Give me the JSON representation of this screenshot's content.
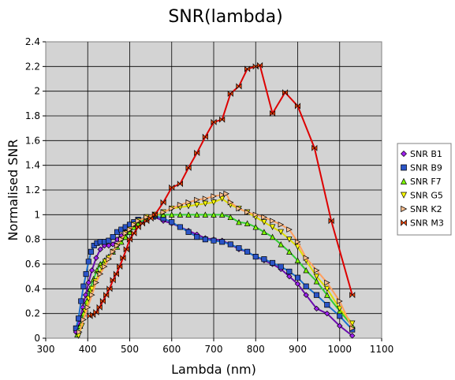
{
  "chart_data": {
    "type": "line",
    "title": "SNR(lambda)",
    "xlabel": "Lambda  (nm)",
    "ylabel": "Normalised SNR",
    "xlim": [
      300,
      1100
    ],
    "ylim": [
      0,
      2.4
    ],
    "xticks": [
      "300",
      "400",
      "500",
      "600",
      "700",
      "800",
      "900",
      "1000",
      "1100"
    ],
    "yticks": [
      "0",
      "0.2",
      "0.4",
      "0.6",
      "0.8",
      "1",
      "1.2",
      "1.4",
      "1.6",
      "1.8",
      "2",
      "2.2",
      "2.4"
    ],
    "grid": true,
    "legend": "right",
    "plot_background": "#d3d3d3",
    "series": [
      {
        "name": "SNR B1",
        "color": "#6a0dad",
        "fill": "#a020f0",
        "marker": "diamond",
        "x": [
          372,
          380,
          388,
          395,
          402,
          410,
          420,
          430,
          440,
          450,
          460,
          470,
          480,
          490,
          500,
          510,
          520,
          540,
          560,
          580,
          600,
          620,
          640,
          660,
          680,
          700,
          720,
          740,
          760,
          780,
          800,
          820,
          840,
          860,
          880,
          900,
          920,
          945,
          970,
          1000,
          1030
        ],
        "y": [
          0.05,
          0.12,
          0.25,
          0.35,
          0.45,
          0.55,
          0.65,
          0.72,
          0.75,
          0.75,
          0.76,
          0.8,
          0.83,
          0.86,
          0.88,
          0.9,
          0.92,
          0.96,
          0.98,
          0.95,
          0.93,
          0.9,
          0.87,
          0.84,
          0.81,
          0.8,
          0.79,
          0.76,
          0.72,
          0.7,
          0.66,
          0.63,
          0.6,
          0.56,
          0.5,
          0.44,
          0.35,
          0.24,
          0.2,
          0.1,
          0.02
        ]
      },
      {
        "name": "SNR B9",
        "color": "#1a6fd1",
        "fill": "#2b55c8",
        "marker": "square",
        "x": [
          372,
          378,
          384,
          390,
          396,
          402,
          408,
          415,
          422,
          430,
          440,
          450,
          460,
          470,
          480,
          490,
          500,
          510,
          520,
          540,
          560,
          580,
          600,
          620,
          640,
          660,
          680,
          700,
          720,
          740,
          760,
          780,
          800,
          820,
          840,
          860,
          880,
          900,
          920,
          945,
          970,
          1000,
          1030
        ],
        "y": [
          0.08,
          0.16,
          0.3,
          0.42,
          0.52,
          0.62,
          0.7,
          0.75,
          0.77,
          0.78,
          0.78,
          0.79,
          0.82,
          0.86,
          0.88,
          0.9,
          0.92,
          0.94,
          0.96,
          0.98,
          0.99,
          0.97,
          0.94,
          0.9,
          0.86,
          0.82,
          0.8,
          0.79,
          0.78,
          0.76,
          0.73,
          0.7,
          0.66,
          0.64,
          0.61,
          0.58,
          0.54,
          0.49,
          0.42,
          0.35,
          0.27,
          0.18,
          0.07
        ]
      },
      {
        "name": "SNR F7",
        "color": "#32cd32",
        "fill": "#7cfc00",
        "marker": "triangle-up",
        "x": [
          375,
          382,
          390,
          398,
          406,
          414,
          422,
          430,
          440,
          450,
          460,
          470,
          480,
          490,
          500,
          510,
          520,
          540,
          560,
          580,
          600,
          620,
          640,
          660,
          680,
          700,
          720,
          740,
          760,
          780,
          800,
          820,
          840,
          860,
          880,
          900,
          920,
          945,
          970,
          1000,
          1030
        ],
        "y": [
          0.03,
          0.1,
          0.2,
          0.3,
          0.4,
          0.48,
          0.55,
          0.6,
          0.63,
          0.66,
          0.7,
          0.74,
          0.78,
          0.82,
          0.86,
          0.9,
          0.93,
          0.97,
          1.0,
          1.0,
          1.0,
          1.0,
          1.0,
          1.0,
          1.0,
          1.0,
          1.0,
          0.98,
          0.94,
          0.93,
          0.9,
          0.86,
          0.82,
          0.76,
          0.7,
          0.63,
          0.55,
          0.46,
          0.35,
          0.22,
          0.1
        ]
      },
      {
        "name": "SNR G5",
        "color": "#dede00",
        "fill": "#ffff00",
        "marker": "triangle-down",
        "x": [
          378,
          386,
          394,
          402,
          410,
          418,
          426,
          434,
          442,
          450,
          460,
          470,
          480,
          490,
          500,
          510,
          520,
          540,
          560,
          580,
          600,
          620,
          640,
          660,
          680,
          700,
          720,
          740,
          760,
          780,
          800,
          820,
          840,
          860,
          880,
          900,
          920,
          945,
          970,
          1000,
          1030
        ],
        "y": [
          0.02,
          0.1,
          0.22,
          0.32,
          0.4,
          0.46,
          0.52,
          0.57,
          0.62,
          0.65,
          0.7,
          0.75,
          0.8,
          0.85,
          0.88,
          0.92,
          0.95,
          0.98,
          1.0,
          1.02,
          1.05,
          1.06,
          1.07,
          1.08,
          1.09,
          1.1,
          1.13,
          1.08,
          1.05,
          1.02,
          0.98,
          0.94,
          0.9,
          0.86,
          0.8,
          0.74,
          0.63,
          0.5,
          0.4,
          0.24,
          0.12
        ]
      },
      {
        "name": "SNR K2",
        "color": "#ffa060",
        "fill": "#ffc090",
        "marker": "triangle-right",
        "x": [
          380,
          390,
          400,
          410,
          420,
          430,
          440,
          450,
          460,
          470,
          480,
          490,
          500,
          510,
          520,
          540,
          560,
          580,
          600,
          620,
          640,
          660,
          680,
          700,
          720,
          730,
          740,
          760,
          780,
          800,
          820,
          840,
          860,
          880,
          900,
          920,
          945,
          970,
          1000,
          1030
        ],
        "y": [
          0.05,
          0.15,
          0.25,
          0.35,
          0.45,
          0.52,
          0.58,
          0.64,
          0.7,
          0.75,
          0.8,
          0.85,
          0.88,
          0.92,
          0.95,
          0.98,
          1.0,
          1.02,
          1.05,
          1.08,
          1.1,
          1.12,
          1.13,
          1.15,
          1.16,
          1.17,
          1.1,
          1.05,
          1.02,
          1.0,
          0.98,
          0.95,
          0.92,
          0.88,
          0.78,
          0.65,
          0.55,
          0.45,
          0.3,
          0.08
        ]
      },
      {
        "name": "SNR M3",
        "color": "#dd0000",
        "fill": "#ff4500",
        "marker": "bowtie",
        "x": [
          405,
          412,
          420,
          428,
          436,
          444,
          452,
          460,
          468,
          476,
          484,
          492,
          500,
          510,
          520,
          530,
          540,
          550,
          560,
          580,
          600,
          620,
          640,
          660,
          680,
          700,
          720,
          740,
          760,
          780,
          800,
          810,
          840,
          870,
          900,
          940,
          980,
          1030
        ],
        "y": [
          0.18,
          0.19,
          0.21,
          0.25,
          0.3,
          0.35,
          0.4,
          0.47,
          0.52,
          0.58,
          0.65,
          0.72,
          0.8,
          0.85,
          0.9,
          0.93,
          0.95,
          0.97,
          1.0,
          1.1,
          1.22,
          1.25,
          1.38,
          1.5,
          1.63,
          1.75,
          1.77,
          1.98,
          2.04,
          2.18,
          2.2,
          2.21,
          1.82,
          1.99,
          1.88,
          1.54,
          0.95,
          0.35
        ]
      }
    ]
  }
}
